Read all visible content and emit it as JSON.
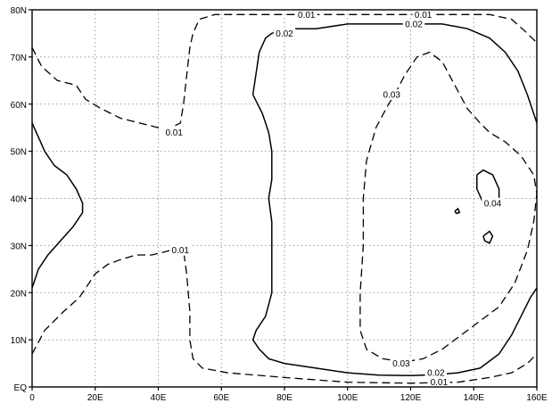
{
  "chart_data": {
    "type": "contour",
    "xlim": [
      0,
      160
    ],
    "ylim": [
      0,
      80
    ],
    "x_ticks": [
      {
        "value": 0,
        "label": "0"
      },
      {
        "value": 20,
        "label": "20E"
      },
      {
        "value": 40,
        "label": "40E"
      },
      {
        "value": 60,
        "label": "60E"
      },
      {
        "value": 80,
        "label": "80E"
      },
      {
        "value": 100,
        "label": "100E"
      },
      {
        "value": 120,
        "label": "120E"
      },
      {
        "value": 140,
        "label": "140E"
      },
      {
        "value": 160,
        "label": "160E"
      }
    ],
    "y_ticks": [
      {
        "value": 0,
        "label": "EQ"
      },
      {
        "value": 10,
        "label": "10N"
      },
      {
        "value": 20,
        "label": "20N"
      },
      {
        "value": 30,
        "label": "30N"
      },
      {
        "value": 40,
        "label": "40N"
      },
      {
        "value": 50,
        "label": "50N"
      },
      {
        "value": 60,
        "label": "60N"
      },
      {
        "value": 70,
        "label": "70N"
      },
      {
        "value": 80,
        "label": "80N"
      }
    ],
    "grid": true,
    "contours": [
      {
        "level": 0.01,
        "style": "dashed",
        "points": [
          [
            0,
            72
          ],
          [
            3,
            68
          ],
          [
            8,
            65
          ],
          [
            14,
            64
          ],
          [
            17,
            61
          ],
          [
            22,
            59
          ],
          [
            28,
            57
          ],
          [
            34,
            56
          ],
          [
            40,
            55
          ],
          [
            44,
            55
          ],
          [
            47,
            56
          ],
          [
            48,
            60
          ],
          [
            49,
            66
          ],
          [
            50,
            72
          ],
          [
            51,
            75
          ],
          [
            53,
            78
          ],
          [
            58,
            79
          ],
          [
            70,
            79
          ],
          [
            90,
            79
          ],
          [
            110,
            79
          ],
          [
            130,
            79
          ],
          [
            145,
            79
          ],
          [
            152,
            78
          ],
          [
            157,
            75
          ],
          [
            160,
            73
          ]
        ]
      },
      {
        "level": 0.01,
        "style": "dashed",
        "points": [
          [
            0,
            7
          ],
          [
            4,
            12
          ],
          [
            10,
            16
          ],
          [
            15,
            19
          ],
          [
            18,
            22
          ],
          [
            20,
            24
          ],
          [
            24,
            26
          ],
          [
            28,
            27
          ],
          [
            33,
            28
          ],
          [
            38,
            28
          ],
          [
            44,
            29
          ],
          [
            48,
            29
          ],
          [
            49,
            24
          ],
          [
            50,
            16
          ],
          [
            50,
            10
          ],
          [
            51,
            6
          ],
          [
            54,
            4
          ],
          [
            62,
            3
          ],
          [
            80,
            2
          ],
          [
            100,
            1
          ],
          [
            120,
            0.8
          ],
          [
            135,
            1
          ],
          [
            145,
            2
          ],
          [
            152,
            3
          ],
          [
            157,
            5
          ],
          [
            160,
            7
          ]
        ]
      },
      {
        "level": 0.02,
        "style": "solid",
        "points": [
          [
            0,
            56
          ],
          [
            2,
            53
          ],
          [
            4,
            50
          ],
          [
            7,
            47
          ],
          [
            11,
            45
          ],
          [
            14,
            42
          ],
          [
            16,
            39
          ],
          [
            16,
            37
          ],
          [
            13,
            34
          ],
          [
            9,
            31
          ],
          [
            5,
            28
          ],
          [
            2,
            25
          ],
          [
            0,
            21
          ]
        ]
      },
      {
        "level": 0.02,
        "style": "solid",
        "points": [
          [
            70,
            62
          ],
          [
            72,
            71
          ],
          [
            74,
            74
          ],
          [
            76,
            75
          ],
          [
            80,
            76
          ],
          [
            90,
            76
          ],
          [
            100,
            77
          ],
          [
            110,
            77
          ],
          [
            120,
            77
          ],
          [
            130,
            77
          ],
          [
            138,
            76
          ],
          [
            145,
            74
          ],
          [
            150,
            71
          ],
          [
            154,
            67
          ],
          [
            157,
            62
          ],
          [
            160,
            56
          ]
        ]
      },
      {
        "level": 0.02,
        "style": "solid",
        "points": [
          [
            70,
            62
          ],
          [
            73,
            58
          ],
          [
            75,
            54
          ],
          [
            76,
            50
          ],
          [
            76,
            44
          ],
          [
            75,
            40
          ],
          [
            76,
            35
          ],
          [
            76,
            28
          ],
          [
            76,
            20
          ],
          [
            74,
            15
          ],
          [
            71,
            12
          ],
          [
            70,
            10
          ],
          [
            72,
            8
          ],
          [
            75,
            6
          ],
          [
            80,
            5
          ],
          [
            90,
            4
          ],
          [
            100,
            3
          ],
          [
            110,
            2.5
          ],
          [
            120,
            2.4
          ],
          [
            128,
            2.6
          ],
          [
            135,
            3
          ],
          [
            142,
            4
          ],
          [
            148,
            7
          ],
          [
            152,
            11
          ],
          [
            155,
            15
          ],
          [
            158,
            19
          ],
          [
            160,
            21
          ]
        ]
      },
      {
        "level": 0.03,
        "style": "dashed",
        "points": [
          [
            115,
            62
          ],
          [
            118,
            66
          ],
          [
            122,
            70
          ],
          [
            126,
            71
          ],
          [
            130,
            69
          ],
          [
            134,
            64
          ],
          [
            138,
            59
          ],
          [
            142,
            56
          ],
          [
            145,
            54
          ],
          [
            150,
            52
          ],
          [
            155,
            49
          ],
          [
            159,
            45
          ],
          [
            160,
            41
          ],
          [
            159,
            35
          ],
          [
            157,
            29
          ],
          [
            153,
            22
          ],
          [
            148,
            17
          ],
          [
            142,
            14
          ],
          [
            136,
            11
          ],
          [
            130,
            8
          ],
          [
            124,
            6
          ],
          [
            118,
            5.3
          ],
          [
            111,
            6
          ],
          [
            106,
            8
          ],
          [
            104,
            12
          ],
          [
            104,
            20
          ],
          [
            105,
            30
          ],
          [
            105,
            40
          ],
          [
            106,
            48
          ],
          [
            109,
            55
          ],
          [
            113,
            60
          ],
          [
            115,
            62
          ]
        ]
      },
      {
        "level": 0.04,
        "style": "solid",
        "points": [
          [
            141,
            45
          ],
          [
            143,
            46
          ],
          [
            146,
            45
          ],
          [
            148,
            42
          ],
          [
            148,
            39
          ],
          [
            146,
            38
          ],
          [
            143,
            39
          ],
          [
            141,
            42
          ],
          [
            141,
            45
          ]
        ]
      },
      {
        "level": 0.04,
        "style": "solid",
        "points": [
          [
            143,
            32
          ],
          [
            145,
            33
          ],
          [
            146,
            32
          ],
          [
            145,
            30.5
          ],
          [
            143.5,
            31
          ],
          [
            143,
            32
          ]
        ]
      },
      {
        "level": 0.04,
        "style": "solid",
        "points": [
          [
            134,
            37.3
          ],
          [
            135,
            37.8
          ],
          [
            135.5,
            37
          ],
          [
            134.5,
            36.8
          ],
          [
            134,
            37.3
          ]
        ]
      }
    ],
    "labels": [
      {
        "text": "0.01",
        "x": 87,
        "y": 79
      },
      {
        "text": "0.01",
        "x": 124,
        "y": 79
      },
      {
        "text": "0.02",
        "x": 80,
        "y": 75
      },
      {
        "text": "0.02",
        "x": 121,
        "y": 77
      },
      {
        "text": "0.03",
        "x": 114,
        "y": 62
      },
      {
        "text": "0.01",
        "x": 45,
        "y": 54
      },
      {
        "text": "0.04",
        "x": 146,
        "y": 39
      },
      {
        "text": "0.01",
        "x": 47,
        "y": 29
      },
      {
        "text": "0.03",
        "x": 117,
        "y": 5
      },
      {
        "text": "0.02",
        "x": 128,
        "y": 3
      },
      {
        "text": "0.01",
        "x": 129,
        "y": 1
      }
    ]
  }
}
